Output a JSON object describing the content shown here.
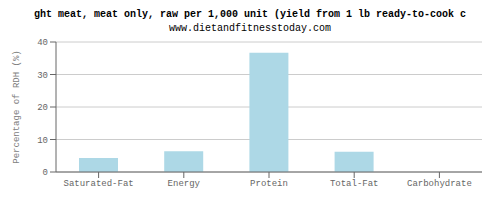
{
  "chart_data": {
    "type": "bar",
    "title": "ght meat, meat only, raw per 1,000 unit (yield from 1 lb ready-to-cook c",
    "subtitle": "www.dietandfitnesstoday.com",
    "categories": [
      "Saturated-Fat",
      "Energy",
      "Protein",
      "Total-Fat",
      "Carbohydrate"
    ],
    "values": [
      4.3,
      6.4,
      36.7,
      6.2,
      0.0
    ],
    "color": "#add8e6",
    "ylabel": "Percentage of RDH (%)",
    "ylim": [
      0,
      40
    ],
    "yticks": [
      0,
      10,
      20,
      30,
      40
    ],
    "grid": true
  }
}
